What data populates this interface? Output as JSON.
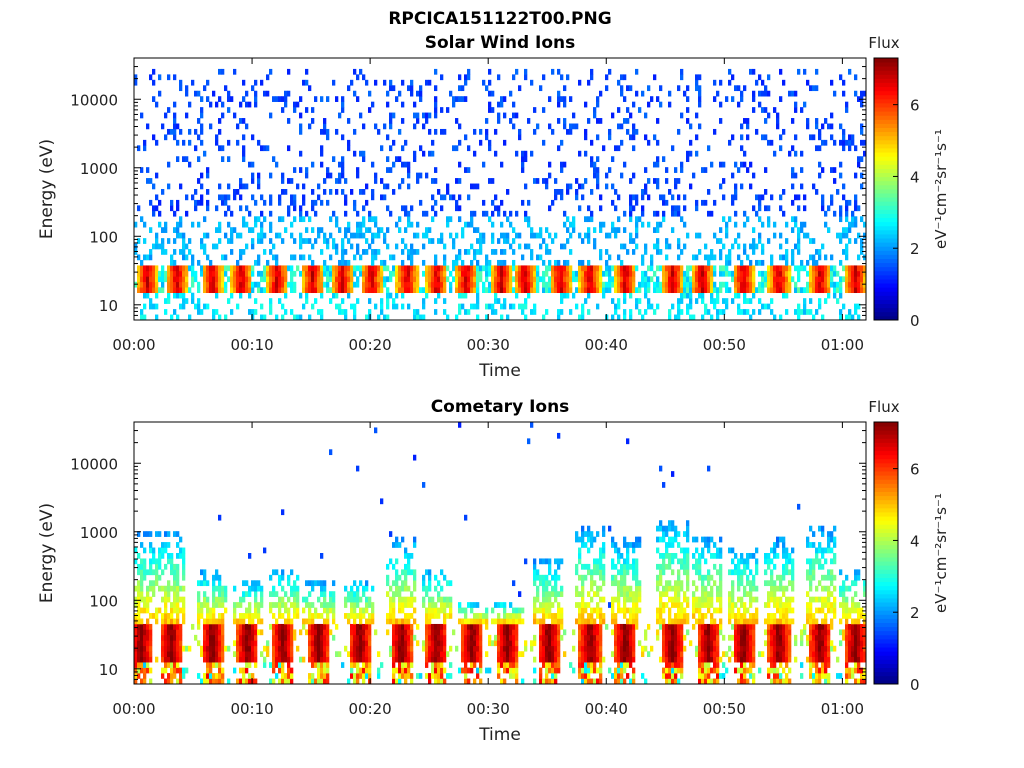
{
  "figure": {
    "title": "RPCICA151122T00.PNG"
  },
  "chart_data": [
    {
      "type": "heatmap",
      "title": "Solar Wind Ions",
      "xlabel": "Time",
      "ylabel": "Energy (eV)",
      "x_tick_labels": [
        "00:00",
        "00:10",
        "00:20",
        "00:30",
        "00:40",
        "00:50",
        "01:00"
      ],
      "x_tick_values_min": [
        0,
        10,
        20,
        30,
        40,
        50,
        60
      ],
      "xlim_min": [
        0,
        62
      ],
      "y_scale": "log",
      "y_tick_labels": [
        "10",
        "100",
        "1000",
        "10000"
      ],
      "y_tick_values": [
        10,
        100,
        1000,
        10000
      ],
      "ylim": [
        6,
        40000
      ],
      "colorbar": {
        "title": "Flux",
        "label": "eV⁻¹cm⁻²sr⁻¹s⁻¹",
        "range": [
          0,
          7.3
        ],
        "ticks": [
          "0",
          "2",
          "4",
          "6"
        ],
        "tick_values": [
          0,
          2,
          4,
          6
        ],
        "colormap": "jet"
      },
      "description_values": {
        "band_energy_eV": [
          15,
          40
        ],
        "band_flux_typical": 4.5,
        "band_flux_peak": 6.5,
        "scatter_energy_range_eV": [
          60,
          30000
        ],
        "scatter_flux_typical": 1.5,
        "burst_times_min": [
          1,
          3.5,
          6.5,
          9,
          12,
          15,
          17.5,
          20,
          23,
          25.5,
          28,
          31,
          33,
          36,
          38.5,
          41.5,
          45.5,
          48,
          51.5,
          54.5,
          58,
          61
        ]
      }
    },
    {
      "type": "heatmap",
      "title": "Cometary Ions",
      "xlabel": "Time",
      "ylabel": "Energy (eV)",
      "x_tick_labels": [
        "00:00",
        "00:10",
        "00:20",
        "00:30",
        "00:40",
        "00:50",
        "01:00"
      ],
      "x_tick_values_min": [
        0,
        10,
        20,
        30,
        40,
        50,
        60
      ],
      "xlim_min": [
        0,
        62
      ],
      "y_scale": "log",
      "y_tick_labels": [
        "10",
        "100",
        "1000",
        "10000"
      ],
      "y_tick_values": [
        10,
        100,
        1000,
        10000
      ],
      "ylim": [
        6,
        40000
      ],
      "colorbar": {
        "title": "Flux",
        "label": "eV⁻¹cm⁻²sr⁻¹s⁻¹",
        "range": [
          0,
          7.3
        ],
        "ticks": [
          "0",
          "2",
          "4",
          "6"
        ],
        "tick_values": [
          0,
          2,
          4,
          6
        ],
        "colormap": "jet"
      },
      "description_values": {
        "band_energy_eV": [
          12,
          45
        ],
        "band_flux_typical": 5.5,
        "band_flux_peak": 7.0,
        "burst_times_min": [
          0.5,
          3,
          6.5,
          9.5,
          12.5,
          15.5,
          19,
          22.5,
          25.5,
          28.5,
          31.5,
          35,
          38.5,
          41.5,
          45.5,
          48.5,
          51.5,
          54.5,
          58,
          61
        ],
        "burst_peak_energy_eV": [
          1000,
          1000,
          300,
          200,
          300,
          200,
          200,
          800,
          300,
          100,
          100,
          400,
          1200,
          800,
          1500,
          900,
          600,
          800,
          1200,
          300
        ]
      }
    }
  ]
}
